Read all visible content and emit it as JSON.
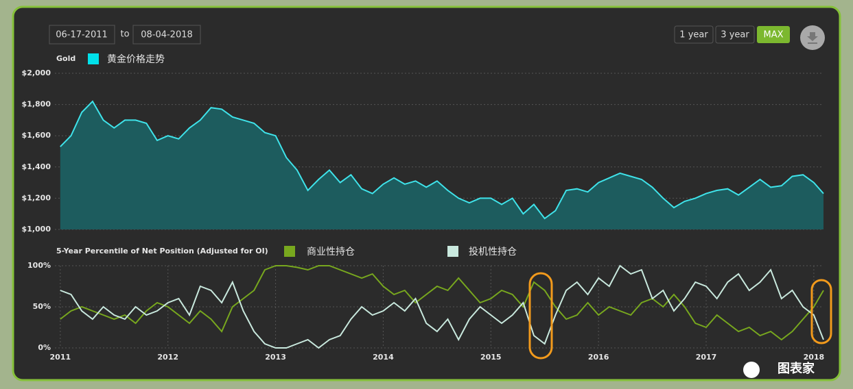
{
  "controls": {
    "start_date": "06-17-2011",
    "to": "to",
    "end_date": "08-04-2018",
    "buttons": [
      "1 year",
      "3 year",
      "MAX"
    ]
  },
  "watermark": "图表家",
  "chart_data": [
    {
      "type": "area",
      "legend_title": "Gold",
      "color": "#3fe3ea",
      "fill": "#1d5c5e",
      "series": [
        {
          "name": "黄金价格走势",
          "color": "#00e1ea"
        }
      ],
      "x": [
        2011.0,
        2011.1,
        2011.2,
        2011.3,
        2011.4,
        2011.5,
        2011.6,
        2011.7,
        2011.8,
        2011.9,
        2012.0,
        2012.1,
        2012.2,
        2012.3,
        2012.4,
        2012.5,
        2012.6,
        2012.7,
        2012.8,
        2012.9,
        2013.0,
        2013.1,
        2013.2,
        2013.3,
        2013.4,
        2013.5,
        2013.6,
        2013.7,
        2013.8,
        2013.9,
        2014.0,
        2014.1,
        2014.2,
        2014.3,
        2014.4,
        2014.5,
        2014.6,
        2014.7,
        2014.8,
        2014.9,
        2015.0,
        2015.1,
        2015.2,
        2015.3,
        2015.4,
        2015.5,
        2015.6,
        2015.7,
        2015.8,
        2015.9,
        2016.0,
        2016.1,
        2016.2,
        2016.3,
        2016.4,
        2016.5,
        2016.6,
        2016.7,
        2016.8,
        2016.9,
        2017.0,
        2017.1,
        2017.2,
        2017.3,
        2017.4,
        2017.5,
        2017.6,
        2017.7,
        2017.8,
        2017.9,
        2018.0,
        2018.09
      ],
      "values": [
        1530,
        1600,
        1750,
        1820,
        1700,
        1650,
        1700,
        1700,
        1680,
        1570,
        1600,
        1580,
        1650,
        1700,
        1780,
        1770,
        1720,
        1700,
        1680,
        1620,
        1600,
        1460,
        1380,
        1250,
        1320,
        1380,
        1300,
        1350,
        1260,
        1230,
        1290,
        1330,
        1290,
        1310,
        1270,
        1310,
        1250,
        1200,
        1170,
        1200,
        1200,
        1160,
        1200,
        1100,
        1160,
        1070,
        1120,
        1250,
        1260,
        1240,
        1300,
        1330,
        1360,
        1340,
        1320,
        1270,
        1200,
        1140,
        1180,
        1200,
        1230,
        1250,
        1260,
        1220,
        1270,
        1320,
        1270,
        1280,
        1340,
        1350,
        1300,
        1230
      ],
      "xlim": [
        2010.95,
        2018.09
      ],
      "ylim": [
        1000,
        2000
      ],
      "yticks": [
        {
          "value": 1000,
          "label": "$1,000"
        },
        {
          "value": 1200,
          "label": "$1,200"
        },
        {
          "value": 1400,
          "label": "$1,400"
        },
        {
          "value": 1600,
          "label": "$1,600"
        },
        {
          "value": 1800,
          "label": "$1,800"
        },
        {
          "value": 2000,
          "label": "$2,000"
        }
      ],
      "grid": true
    },
    {
      "type": "line",
      "legend_title": "5-Year Percentile of Net Position (Adjusted for OI)",
      "x": [
        2011.0,
        2011.1,
        2011.2,
        2011.3,
        2011.4,
        2011.5,
        2011.6,
        2011.7,
        2011.8,
        2011.9,
        2012.0,
        2012.1,
        2012.2,
        2012.3,
        2012.4,
        2012.5,
        2012.6,
        2012.7,
        2012.8,
        2012.9,
        2013.0,
        2013.1,
        2013.2,
        2013.3,
        2013.4,
        2013.5,
        2013.6,
        2013.7,
        2013.8,
        2013.9,
        2014.0,
        2014.1,
        2014.2,
        2014.3,
        2014.4,
        2014.5,
        2014.6,
        2014.7,
        2014.8,
        2014.9,
        2015.0,
        2015.1,
        2015.2,
        2015.3,
        2015.4,
        2015.5,
        2015.6,
        2015.7,
        2015.8,
        2015.9,
        2016.0,
        2016.1,
        2016.2,
        2016.3,
        2016.4,
        2016.5,
        2016.6,
        2016.7,
        2016.8,
        2016.9,
        2017.0,
        2017.1,
        2017.2,
        2017.3,
        2017.4,
        2017.5,
        2017.6,
        2017.7,
        2017.8,
        2017.9,
        2018.0,
        2018.09
      ],
      "series": [
        {
          "name": "商业性持仓",
          "color": "#78a81e",
          "values": [
            35,
            45,
            50,
            45,
            40,
            35,
            40,
            30,
            45,
            55,
            50,
            40,
            30,
            45,
            35,
            20,
            50,
            60,
            70,
            95,
            100,
            100,
            98,
            95,
            100,
            100,
            95,
            90,
            85,
            90,
            75,
            65,
            70,
            55,
            65,
            75,
            70,
            85,
            70,
            55,
            60,
            70,
            65,
            50,
            80,
            70,
            50,
            35,
            40,
            55,
            40,
            50,
            45,
            40,
            55,
            60,
            50,
            65,
            50,
            30,
            25,
            40,
            30,
            20,
            25,
            15,
            20,
            10,
            20,
            35,
            50,
            70
          ]
        },
        {
          "name": "投机性持仓",
          "color": "#c9e9de",
          "values": [
            70,
            65,
            45,
            35,
            50,
            40,
            35,
            50,
            40,
            45,
            55,
            60,
            40,
            75,
            70,
            55,
            80,
            45,
            20,
            5,
            0,
            0,
            5,
            10,
            0,
            10,
            15,
            35,
            50,
            40,
            45,
            55,
            45,
            60,
            30,
            20,
            35,
            10,
            35,
            50,
            40,
            30,
            40,
            55,
            15,
            5,
            40,
            70,
            80,
            65,
            85,
            75,
            100,
            90,
            95,
            60,
            70,
            45,
            60,
            80,
            75,
            60,
            80,
            90,
            70,
            80,
            95,
            60,
            70,
            50,
            40,
            10
          ]
        }
      ],
      "xlim": [
        2010.95,
        2018.09
      ],
      "xticks": [
        2011,
        2012,
        2013,
        2014,
        2015,
        2016,
        2017,
        2018
      ],
      "ylim": [
        0,
        100
      ],
      "yticks": [
        {
          "value": 0,
          "label": "0%"
        },
        {
          "value": 50,
          "label": "50%"
        },
        {
          "value": 100,
          "label": "100%"
        }
      ],
      "grid": true
    }
  ]
}
